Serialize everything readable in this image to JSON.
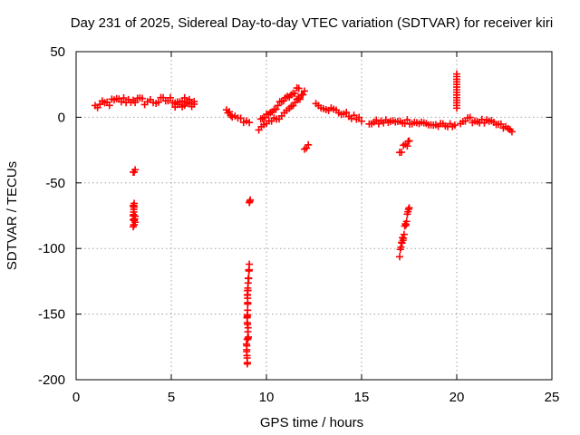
{
  "chart_data": {
    "type": "scatter",
    "title": "Day 231 of 2025, Sidereal Day-to-day VTEC variation (SDTVAR) for receiver kiri",
    "xlabel": "GPS time / hours",
    "ylabel": "SDTVAR / TECUs",
    "xlim": [
      0,
      25
    ],
    "ylim": [
      -200,
      50
    ],
    "xticks": [
      "0",
      "5",
      "10",
      "15",
      "20",
      "25"
    ],
    "yticks": [
      "50",
      "0",
      "-50",
      "-100",
      "-150",
      "-200"
    ],
    "grid": true,
    "marker": "plus",
    "color": "#ff0000",
    "series": [
      {
        "name": "SDTVAR",
        "segments": [
          {
            "x": [
              1.0,
              1.5,
              2.0,
              2.5,
              3.0
            ],
            "y": [
              8,
              10,
              12,
              13,
              13
            ],
            "spread": 3
          },
          {
            "x": [
              3.1,
              3.6,
              4.2,
              4.7,
              5.2,
              5.7,
              6.2
            ],
            "y": [
              13,
              12,
              12,
              13,
              13,
              12,
              12
            ],
            "spread": 3
          },
          {
            "x": [
              5.2,
              5.7,
              6.2
            ],
            "y": [
              8,
              9,
              10
            ],
            "spread": 2
          },
          {
            "x": [
              3.0,
              3.1
            ],
            "y": [
              -42,
              -40
            ],
            "spread": 1
          },
          {
            "x": [
              3.0,
              3.05,
              3.0,
              3.1,
              3.0,
              3.1
            ],
            "y": [
              -68,
              -66,
              -78,
              -75,
              -83,
              -80
            ],
            "spread": 1
          },
          {
            "x": [
              7.9,
              8.2,
              8.5,
              8.8,
              9.1
            ],
            "y": [
              6,
              0,
              -1,
              -2,
              -4
            ],
            "spread": 2
          },
          {
            "x": [
              9.1,
              9.15
            ],
            "y": [
              -65,
              -63
            ],
            "spread": 0
          },
          {
            "x": [
              9.1,
              9.05,
              9.0,
              9.02,
              8.98,
              9.05,
              8.95,
              9.0
            ],
            "y": [
              -113,
              -125,
              -135,
              -145,
              -155,
              -165,
              -175,
              -187
            ],
            "spread": 3
          },
          {
            "x": [
              9.6,
              10.0,
              10.4,
              10.8,
              11.2,
              11.6,
              12.0
            ],
            "y": [
              -9,
              -6,
              -2,
              2,
              6,
              12,
              20
            ],
            "spread": 2
          },
          {
            "x": [
              9.7,
              10.2,
              10.7,
              11.2,
              11.7
            ],
            "y": [
              -2,
              4,
              10,
              16,
              22
            ],
            "spread": 2
          },
          {
            "x": [
              12.0,
              12.2
            ],
            "y": [
              -24,
              -21
            ],
            "spread": 1
          },
          {
            "x": [
              12.6,
              13.0,
              13.4,
              13.8,
              14.2,
              14.6,
              15.0
            ],
            "y": [
              10,
              8,
              6,
              4,
              2,
              0,
              -3
            ],
            "spread": 2
          },
          {
            "x": [
              15.4,
              15.9,
              16.4,
              16.9,
              17.4,
              17.9,
              18.4,
              18.9,
              19.4,
              19.9
            ],
            "y": [
              -4,
              -4,
              -3,
              -4,
              -3,
              -4,
              -5,
              -6,
              -7,
              -6
            ],
            "spread": 2
          },
          {
            "x": [
              20.2,
              20.7,
              21.2,
              21.7,
              22.2,
              22.7,
              22.9
            ],
            "y": [
              -3,
              -2,
              -3,
              -4,
              -6,
              -9,
              -11
            ],
            "spread": 2
          },
          {
            "x": [
              17.0,
              17.2,
              17.4,
              17.5
            ],
            "y": [
              -27,
              -23,
              -20,
              -18
            ],
            "spread": 2
          },
          {
            "x": [
              17.0,
              17.1,
              17.2,
              17.3,
              17.4,
              17.5
            ],
            "y": [
              -105,
              -98,
              -90,
              -83,
              -76,
              -69
            ],
            "spread": 3
          },
          {
            "x": [
              20.0,
              20.0
            ],
            "y": [
              33,
              7
            ],
            "spread": 0
          }
        ]
      }
    ]
  }
}
